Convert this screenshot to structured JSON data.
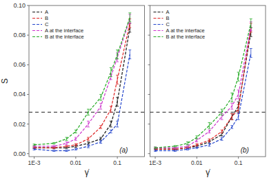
{
  "chart_data": [
    {
      "type": "line",
      "log": "x",
      "grid": false,
      "legend": "upper left",
      "line_style": "dashed",
      "xlabel": "γ̇",
      "ylabel": "S",
      "annotation": "(a)",
      "hline": 0.028,
      "x": [
        0.001,
        0.003,
        0.006,
        0.01,
        0.02,
        0.04,
        0.07,
        0.1,
        0.2
      ],
      "xlim": [
        0.00075,
        0.45
      ],
      "xticks": [
        {
          "value": 0.001,
          "label": "1E-3"
        },
        0.01,
        0.1
      ],
      "ylim": [
        -0.002,
        0.1
      ],
      "yticks": [
        {
          "value": 0,
          "label": "0.00"
        },
        0.02,
        0.04,
        0.06,
        0.08,
        {
          "value": 0.1,
          "label": "0.10"
        }
      ],
      "series": [
        {
          "name": "A",
          "color": "#111111",
          "values": [
            0.004,
            0.004,
            0.004,
            0.005,
            0.007,
            0.01,
            0.02,
            0.035,
            0.085
          ],
          "errors": [
            0.0005,
            0.0005,
            0.0005,
            0.0008,
            0.001,
            0.001,
            0.002,
            0.003,
            0.003
          ]
        },
        {
          "name": "B",
          "color": "#dd2222",
          "values": [
            0.004,
            0.004,
            0.005,
            0.006,
            0.01,
            0.018,
            0.03,
            0.05,
            0.088
          ],
          "errors": [
            0.0005,
            0.0005,
            0.0005,
            0.0008,
            0.001,
            0.001,
            0.002,
            0.003,
            0.003
          ]
        },
        {
          "name": "C",
          "color": "#2244cc",
          "values": [
            0.003,
            0.002,
            0.002,
            0.003,
            0.005,
            0.008,
            0.015,
            0.02,
            0.067
          ],
          "errors": [
            0.0005,
            0.0005,
            0.0005,
            0.0005,
            0.001,
            0.001,
            0.001,
            0.002,
            0.003
          ]
        },
        {
          "name": "A at the interface",
          "color": "#cc33cc",
          "values": [
            0.005,
            0.005,
            0.007,
            0.01,
            0.02,
            0.032,
            0.052,
            0.065,
            0.091
          ],
          "errors": [
            0.0005,
            0.0005,
            0.001,
            0.001,
            0.002,
            0.002,
            0.002,
            0.003,
            0.003
          ]
        },
        {
          "name": "B at the interface",
          "color": "#22aa22",
          "values": [
            0.006,
            0.007,
            0.01,
            0.015,
            0.028,
            0.038,
            0.055,
            0.067,
            0.092
          ],
          "errors": [
            0.0005,
            0.0005,
            0.001,
            0.001,
            0.002,
            0.002,
            0.003,
            0.003,
            0.003
          ]
        }
      ]
    },
    {
      "type": "line",
      "log": "x",
      "grid": false,
      "legend": "upper left",
      "line_style": "dashed",
      "tick_labels": "x",
      "xlabel": "γ̇",
      "annotation": "(b)",
      "hline": 0.028,
      "x": [
        0.001,
        0.003,
        0.006,
        0.01,
        0.02,
        0.04,
        0.07,
        0.1,
        0.2
      ],
      "xlim": [
        0.00075,
        0.45
      ],
      "xticks": [
        {
          "value": 0.001,
          "label": "1E-3"
        },
        0.01,
        0.1
      ],
      "ylim": [
        -0.002,
        0.1
      ],
      "yticks": [
        0,
        0.02,
        0.04,
        0.06,
        0.08,
        0.1
      ],
      "series": [
        {
          "name": "A",
          "color": "#111111",
          "values": [
            0.003,
            0.003,
            0.004,
            0.005,
            0.008,
            0.013,
            0.025,
            0.032,
            0.082
          ],
          "errors": [
            0.0005,
            0.0005,
            0.0005,
            0.0008,
            0.001,
            0.001,
            0.002,
            0.003,
            0.003
          ]
        },
        {
          "name": "B",
          "color": "#dd2222",
          "values": [
            0.003,
            0.003,
            0.004,
            0.006,
            0.009,
            0.015,
            0.025,
            0.03,
            0.085
          ],
          "errors": [
            0.0005,
            0.0005,
            0.0005,
            0.0008,
            0.001,
            0.001,
            0.002,
            0.003,
            0.003
          ]
        },
        {
          "name": "C",
          "color": "#2244cc",
          "values": [
            0.002,
            0.002,
            0.003,
            0.004,
            0.006,
            0.01,
            0.018,
            0.025,
            0.068
          ],
          "errors": [
            0.0005,
            0.0005,
            0.0005,
            0.0005,
            0.001,
            0.001,
            0.001,
            0.002,
            0.003
          ]
        },
        {
          "name": "A at the interface",
          "color": "#cc33cc",
          "values": [
            0.004,
            0.004,
            0.005,
            0.009,
            0.015,
            0.025,
            0.032,
            0.04,
            0.086
          ],
          "errors": [
            0.0005,
            0.0005,
            0.001,
            0.001,
            0.001,
            0.002,
            0.002,
            0.003,
            0.003
          ]
        },
        {
          "name": "B at the interface",
          "color": "#22aa22",
          "values": [
            0.004,
            0.005,
            0.007,
            0.011,
            0.019,
            0.028,
            0.038,
            0.052,
            0.088
          ],
          "errors": [
            0.0005,
            0.0005,
            0.001,
            0.001,
            0.002,
            0.002,
            0.003,
            0.003,
            0.003
          ]
        }
      ]
    }
  ]
}
